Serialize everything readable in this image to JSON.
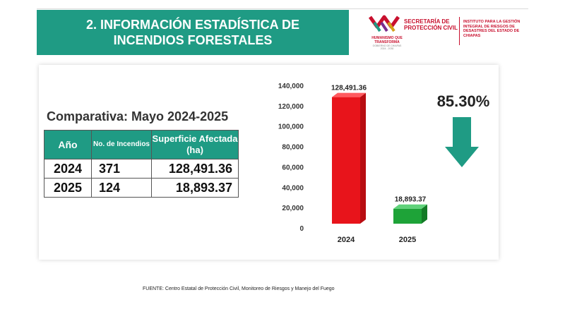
{
  "header": {
    "title_line1": "2. INFORMACIÓN ESTADÍSTICA DE",
    "title_line2": "INCENDIOS FORESTALES"
  },
  "logos": {
    "humanismo": "HUMANISMO QUE TRANSFORMA",
    "gobierno": "GOBIERNO DE CHIAPAS",
    "gobierno_years": "2024 - 2030",
    "secretaria": "SECRETARÍA DE PROTECCIÓN CIVIL",
    "instituto": "INSTITUTO PARA LA GESTIÓN INTEGRAL DE RIESGOS DE DESASTRES DEL ESTADO DE CHIAPAS"
  },
  "comparison": {
    "title": "Comparativa: Mayo 2024-2025",
    "headers": {
      "year": "Año",
      "incendios": "No. de Incendios",
      "superficie": "Superficie Afectada (ha)"
    },
    "rows": [
      {
        "year": "2024",
        "incendios": "371",
        "superficie": "128,491.36"
      },
      {
        "year": "2025",
        "incendios": "124",
        "superficie": "18,893.37"
      }
    ]
  },
  "chart_data": {
    "type": "bar",
    "categories": [
      "2024",
      "2025"
    ],
    "values": [
      128491.36,
      18893.37
    ],
    "data_labels": [
      "128,491.36",
      "18,893.37"
    ],
    "colors": [
      "#e8141b",
      "#1ea338"
    ],
    "ylim": [
      0,
      140000
    ],
    "yticks": [
      0,
      20000,
      40000,
      60000,
      80000,
      100000,
      120000,
      140000
    ],
    "ytick_labels": [
      "0",
      "20,000",
      "40,000",
      "60,000",
      "80,000",
      "100,000",
      "120,000",
      "140,000"
    ],
    "title": "",
    "xlabel": "",
    "ylabel": "",
    "change_label": "85.30%",
    "change_direction": "down",
    "arrow_color": "#1f9b84"
  },
  "footer": {
    "source": "FUENTE: Centro Estatal de Protección Civil, Monitoreo de Riesgos y Manejo del Fuego"
  }
}
